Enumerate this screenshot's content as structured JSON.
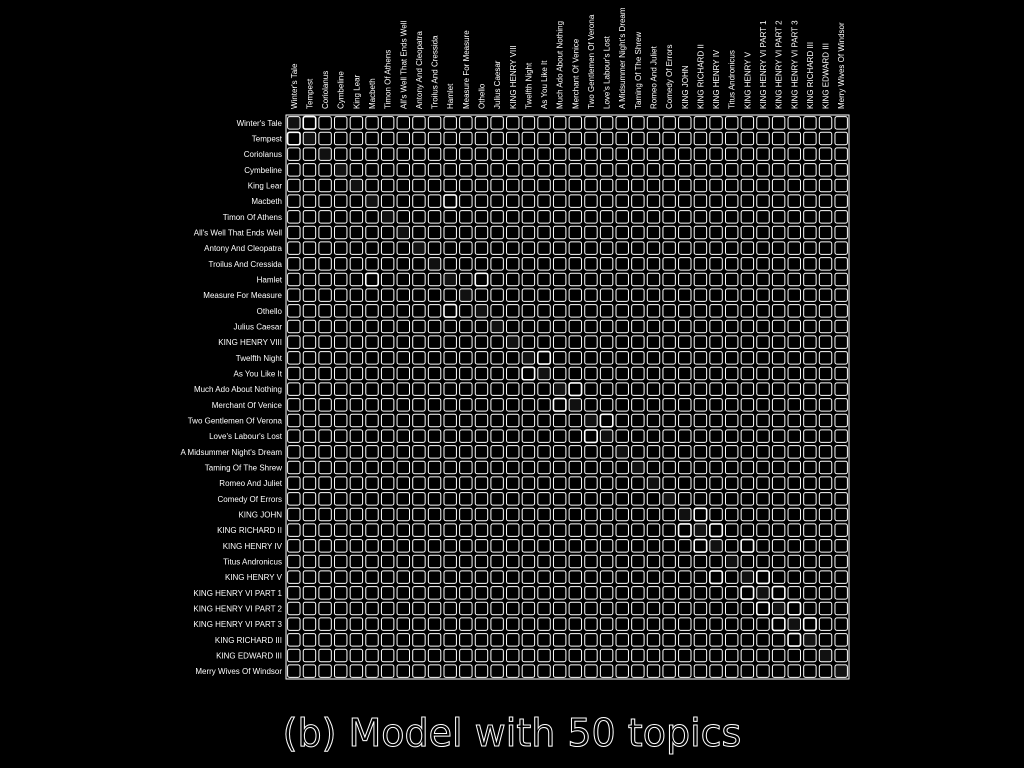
{
  "caption": "(b) Model with 50 topics",
  "colors": {
    "background": "#000000",
    "stroke": "#ffffff"
  },
  "chart_data": {
    "type": "heatmap",
    "title": "(b) Model with 50 topics",
    "grid": true,
    "rows": [
      "Winter's Tale",
      "Tempest",
      "Coriolanus",
      "Cymbeline",
      "King Lear",
      "Macbeth",
      "Timon Of Athens",
      "All's Well That Ends Well",
      "Antony And Cleopatra",
      "Troilus And Cressida",
      "Hamlet",
      "Measure For Measure",
      "Othello",
      "Julius Caesar",
      "KING HENRY VIII",
      "Twelfth Night",
      "As You Like It",
      "Much Ado About Nothing",
      "Merchant Of Venice",
      "Two Gentlemen Of Verona",
      "Love's Labour's Lost",
      "A Midsummer Night's Dream",
      "Taming Of The Shrew",
      "Romeo And Juliet",
      "Comedy Of Errors",
      "KING JOHN",
      "KING RICHARD II",
      "KING HENRY IV",
      "Titus Andronicus",
      "KING HENRY V",
      "KING HENRY VI PART 1",
      "KING HENRY VI PART 2",
      "KING HENRY VI PART 3",
      "KING RICHARD III",
      "KING EDWARD III",
      "Merry Wives Of Windsor"
    ],
    "columns": [
      "Winter's Tale",
      "Tempest",
      "Coriolanus",
      "Cymbeline",
      "King Lear",
      "Macbeth",
      "Timon Of Athens",
      "All's Well That Ends Well",
      "Antony And Cleopatra",
      "Troilus And Cressida",
      "Hamlet",
      "Measure For Measure",
      "Othello",
      "Julius Caesar",
      "KING HENRY VIII",
      "Twelfth Night",
      "As You Like It",
      "Much Ado About Nothing",
      "Merchant Of Venice",
      "Two Gentlemen Of Verona",
      "Love's Labour's Lost",
      "A Midsummer Night's Dream",
      "Taming Of The Shrew",
      "Romeo And Juliet",
      "Comedy Of Errors",
      "KING JOHN",
      "KING RICHARD II",
      "KING HENRY IV",
      "Titus Andronicus",
      "KING HENRY V",
      "KING HENRY VI PART 1",
      "KING HENRY VI PART 2",
      "KING HENRY VI PART 3",
      "KING RICHARD III",
      "KING EDWARD III",
      "Merry Wives Of Windsor"
    ],
    "value_range": [
      0,
      1
    ],
    "strong_pairs": [
      [
        0,
        1
      ],
      [
        1,
        0
      ],
      [
        5,
        10
      ],
      [
        10,
        5
      ],
      [
        10,
        12
      ],
      [
        12,
        10
      ],
      [
        15,
        16
      ],
      [
        16,
        15
      ],
      [
        17,
        18
      ],
      [
        18,
        17
      ],
      [
        19,
        20
      ],
      [
        20,
        19
      ],
      [
        25,
        26
      ],
      [
        26,
        25
      ],
      [
        26,
        27
      ],
      [
        27,
        26
      ],
      [
        27,
        29
      ],
      [
        29,
        27
      ],
      [
        29,
        30
      ],
      [
        30,
        29
      ],
      [
        30,
        31
      ],
      [
        31,
        30
      ],
      [
        31,
        32
      ],
      [
        32,
        31
      ],
      [
        32,
        33
      ],
      [
        33,
        32
      ]
    ]
  }
}
